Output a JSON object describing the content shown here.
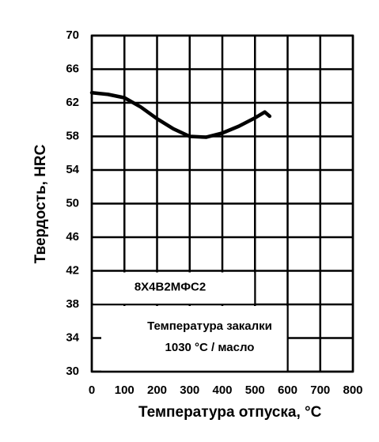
{
  "chart_data": {
    "type": "line",
    "xlabel": "Температура отпуска, °C",
    "ylabel": "Твердость, HRC",
    "annotations": [
      "8Х4В2МФС2",
      "Температура закалки",
      "1030 °C / масло"
    ],
    "x": [
      0,
      50,
      100,
      150,
      200,
      250,
      300,
      350,
      400,
      450,
      500,
      530,
      545
    ],
    "series": [
      {
        "color": "#000000",
        "values": [
          63.2,
          63.0,
          62.6,
          61.5,
          60.1,
          58.9,
          58.0,
          57.9,
          58.4,
          59.2,
          60.2,
          60.9,
          60.4
        ]
      }
    ],
    "xlim": [
      0,
      800
    ],
    "xticks": [
      0,
      100,
      200,
      300,
      400,
      500,
      600,
      700,
      800
    ],
    "ylim": [
      30,
      70
    ],
    "yticks": [
      30,
      34,
      38,
      42,
      46,
      50,
      54,
      58,
      62,
      66,
      70
    ],
    "grid": true
  }
}
